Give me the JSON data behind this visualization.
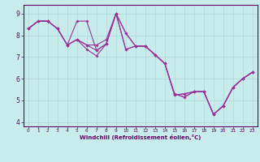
{
  "xlabel": "Windchill (Refroidissement éolien,°C)",
  "bg_color": "#c8ecec",
  "line_color": "#993399",
  "xlim": [
    -0.5,
    23.5
  ],
  "ylim": [
    3.8,
    9.4
  ],
  "x_ticks": [
    0,
    1,
    2,
    3,
    4,
    5,
    6,
    7,
    8,
    9,
    10,
    11,
    12,
    13,
    14,
    15,
    16,
    17,
    18,
    19,
    20,
    21,
    22,
    23
  ],
  "y_ticks": [
    4,
    5,
    6,
    7,
    8,
    9
  ],
  "lines": [
    [
      0,
      1,
      2,
      3,
      4,
      5,
      6,
      7,
      8,
      9,
      10,
      11,
      12,
      13,
      14,
      15,
      16,
      17,
      18,
      19,
      20,
      21,
      22,
      23
    ],
    [
      [
        8.3,
        8.65,
        8.65,
        8.3,
        7.55,
        8.65,
        8.65,
        7.3,
        7.6,
        9.0,
        8.1,
        7.5,
        7.5,
        7.1,
        6.7,
        5.25,
        5.3,
        5.4,
        5.4,
        4.35,
        4.75,
        5.6,
        6.0,
        6.3
      ],
      [
        8.3,
        8.65,
        8.65,
        8.3,
        7.55,
        7.8,
        7.55,
        7.3,
        7.6,
        9.0,
        8.1,
        7.5,
        7.5,
        7.1,
        6.7,
        5.25,
        5.3,
        5.4,
        5.4,
        4.35,
        4.75,
        5.6,
        6.0,
        6.3
      ],
      [
        8.3,
        8.65,
        8.65,
        8.3,
        7.55,
        7.8,
        7.35,
        7.05,
        7.6,
        9.0,
        7.35,
        7.5,
        7.5,
        7.1,
        6.7,
        5.3,
        5.15,
        5.4,
        5.4,
        4.35,
        4.75,
        5.6,
        6.0,
        6.3
      ],
      [
        8.3,
        8.65,
        8.65,
        8.3,
        7.55,
        7.8,
        7.55,
        7.55,
        7.8,
        9.0,
        7.35,
        7.5,
        7.5,
        7.1,
        6.7,
        5.3,
        5.15,
        5.4,
        5.4,
        4.35,
        4.75,
        5.6,
        6.0,
        6.3
      ]
    ]
  ]
}
